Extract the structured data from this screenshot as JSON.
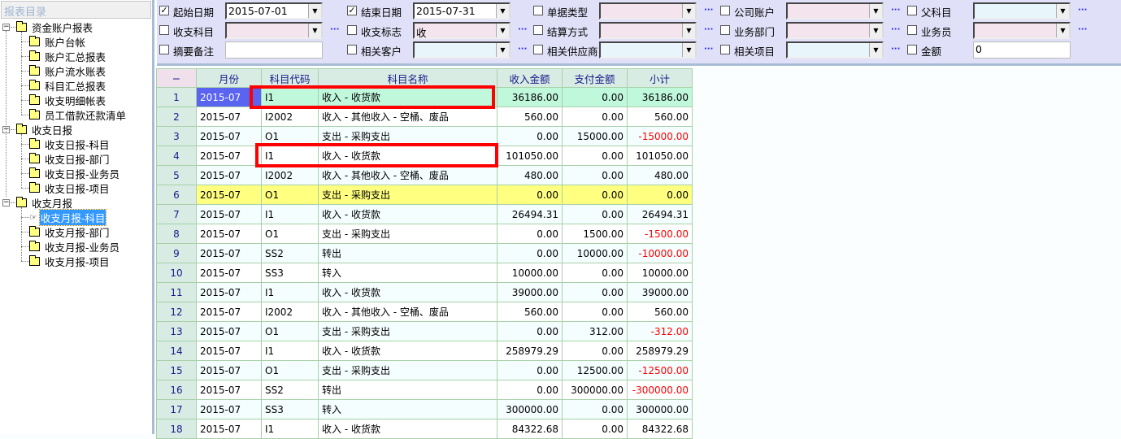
{
  "sidebar": {
    "title": "报表目录",
    "groups": [
      {
        "label": "资金账户报表",
        "items": [
          "账户台帐",
          "账户汇总报表",
          "账户流水账表",
          "科目汇总报表",
          "收支明细帐表",
          "员工借款还款清单"
        ]
      },
      {
        "label": "收支日报",
        "items": [
          "收支日报-科目",
          "收支日报-部门",
          "收支日报-业务员",
          "收支日报-项目"
        ]
      },
      {
        "label": "收支月报",
        "items": [
          "收支月报-科目",
          "收支月报-部门",
          "收支月报-业务员",
          "收支月报-项目"
        ]
      }
    ],
    "selected": "收支月报-科目"
  },
  "filters": [
    [
      {
        "label": "起始日期",
        "checked": true,
        "value": "2015-07-01",
        "style": "white",
        "dots": false
      },
      {
        "label": "结束日期",
        "checked": true,
        "value": "2015-07-31",
        "style": "white",
        "dots": false
      },
      {
        "label": "单据类型",
        "checked": false,
        "value": "",
        "style": "pink",
        "dots": true
      },
      {
        "label": "公司账户",
        "checked": false,
        "value": "",
        "style": "pink",
        "dots": true
      },
      {
        "label": "父科目",
        "checked": false,
        "value": "",
        "style": "cyan",
        "dots": true
      }
    ],
    [
      {
        "label": "收支科目",
        "checked": false,
        "value": "",
        "style": "pink",
        "dots": true
      },
      {
        "label": "收支标志",
        "checked": false,
        "value": "收",
        "style": "pink",
        "dots": true
      },
      {
        "label": "结算方式",
        "checked": false,
        "value": "",
        "style": "pink",
        "dots": true
      },
      {
        "label": "业务部门",
        "checked": false,
        "value": "",
        "style": "pink",
        "dots": true
      },
      {
        "label": "业务员",
        "checked": false,
        "value": "",
        "style": "pink",
        "dots": true
      }
    ],
    [
      {
        "label": "摘要备注",
        "checked": false,
        "value": "",
        "style": "white",
        "text": true,
        "dots": false
      },
      {
        "label": "相关客户",
        "checked": false,
        "value": "",
        "style": "cyan",
        "dots": true
      },
      {
        "label": "相关供应商",
        "checked": false,
        "value": "",
        "style": "cyan",
        "dots": true
      },
      {
        "label": "相关项目",
        "checked": false,
        "value": "",
        "style": "cyan",
        "dots": true
      },
      {
        "label": "金额",
        "checked": false,
        "value": "0",
        "style": "white",
        "text": true,
        "dots": false
      }
    ]
  ],
  "dots_label": "···",
  "grid": {
    "corner": "−",
    "headers": [
      "月份",
      "科目代码",
      "科目名称",
      "收入金额",
      "支付金额",
      "小计"
    ],
    "rows": [
      [
        "2015-07",
        "I1",
        "收入 - 收货款",
        "36186.00",
        "0.00",
        "36186.00"
      ],
      [
        "2015-07",
        "I2002",
        "收入 - 其他收入 - 空桶、废品",
        "560.00",
        "0.00",
        "560.00"
      ],
      [
        "2015-07",
        "O1",
        "支出 - 采购支出",
        "0.00",
        "15000.00",
        "-15000.00"
      ],
      [
        "2015-07",
        "I1",
        "收入 - 收货款",
        "101050.00",
        "0.00",
        "101050.00"
      ],
      [
        "2015-07",
        "I2002",
        "收入 - 其他收入 - 空桶、废品",
        "480.00",
        "0.00",
        "480.00"
      ],
      [
        "2015-07",
        "O1",
        "支出 - 采购支出",
        "0.00",
        "0.00",
        "0.00"
      ],
      [
        "2015-07",
        "I1",
        "收入 - 收货款",
        "26494.31",
        "0.00",
        "26494.31"
      ],
      [
        "2015-07",
        "O1",
        "支出 - 采购支出",
        "0.00",
        "1500.00",
        "-1500.00"
      ],
      [
        "2015-07",
        "SS2",
        "转出",
        "0.00",
        "10000.00",
        "-10000.00"
      ],
      [
        "2015-07",
        "SS3",
        "转入",
        "10000.00",
        "0.00",
        "10000.00"
      ],
      [
        "2015-07",
        "I1",
        "收入 - 收货款",
        "39000.00",
        "0.00",
        "39000.00"
      ],
      [
        "2015-07",
        "I2002",
        "收入 - 其他收入 - 空桶、废品",
        "560.00",
        "0.00",
        "560.00"
      ],
      [
        "2015-07",
        "O1",
        "支出 - 采购支出",
        "0.00",
        "312.00",
        "-312.00"
      ],
      [
        "2015-07",
        "I1",
        "收入 - 收货款",
        "258979.29",
        "0.00",
        "258979.29"
      ],
      [
        "2015-07",
        "O1",
        "支出 - 采购支出",
        "0.00",
        "12500.00",
        "-12500.00"
      ],
      [
        "2015-07",
        "SS2",
        "转出",
        "0.00",
        "300000.00",
        "-300000.00"
      ],
      [
        "2015-07",
        "SS3",
        "转入",
        "300000.00",
        "0.00",
        "300000.00"
      ],
      [
        "2015-07",
        "I1",
        "收入 - 收货款",
        "84322.68",
        "0.00",
        "84322.68"
      ]
    ],
    "current_row": 1,
    "highlight_row": 6,
    "negative_color": "#ff0000",
    "annotation_color": "#ff0000"
  }
}
